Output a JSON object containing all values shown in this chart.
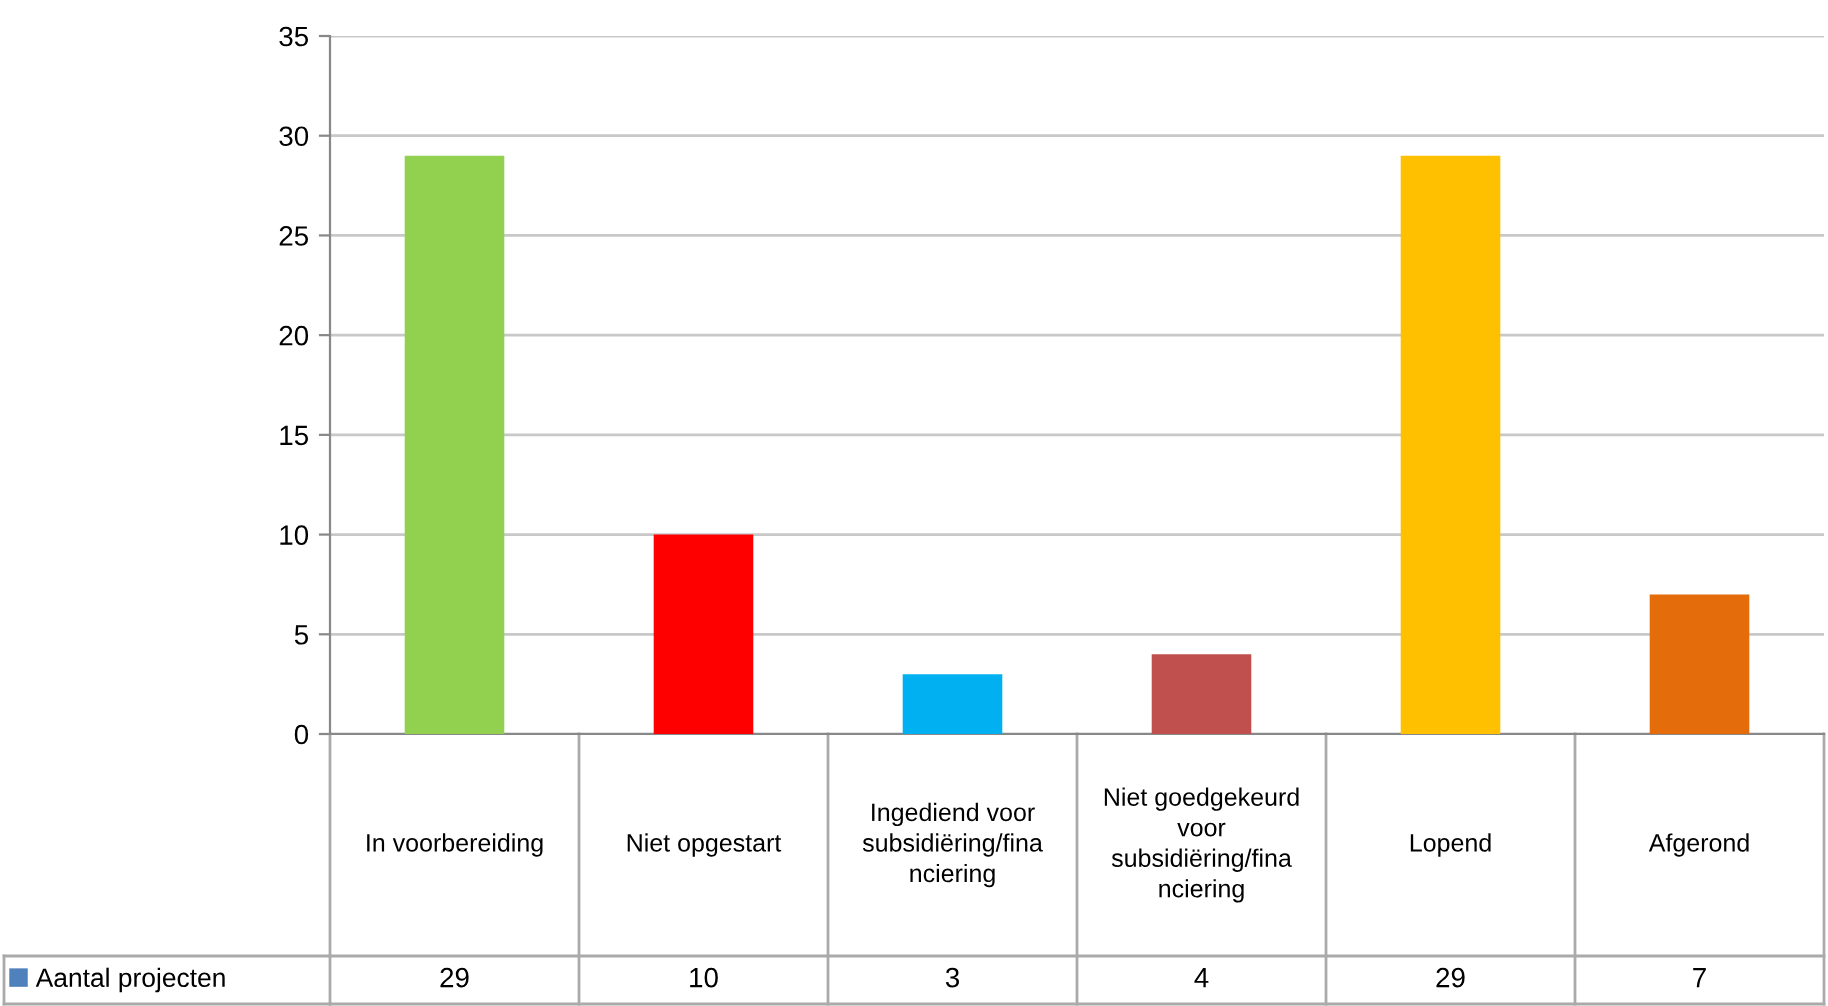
{
  "chart_data": {
    "type": "bar",
    "categories": [
      "In voorbereiding",
      "Niet opgestart",
      "Ingediend voor subsidiëring/financiering",
      "Niet goedgekeurd voor subsidiëring/financiering",
      "Lopend",
      "Afgerond"
    ],
    "series": [
      {
        "name": "Aantal projecten",
        "color": "#4f81bd",
        "colors": [
          "#92d050",
          "#ff0000",
          "#00b0f0",
          "#c0504d",
          "#ffc000",
          "#e46c0a"
        ],
        "values": [
          29,
          10,
          3,
          4,
          29,
          7
        ]
      }
    ],
    "ylim": [
      0,
      35
    ],
    "yticks": [
      0,
      5,
      10,
      15,
      20,
      25,
      30,
      35
    ],
    "grid": "y",
    "data_labels": true,
    "legend": "bottom left"
  }
}
